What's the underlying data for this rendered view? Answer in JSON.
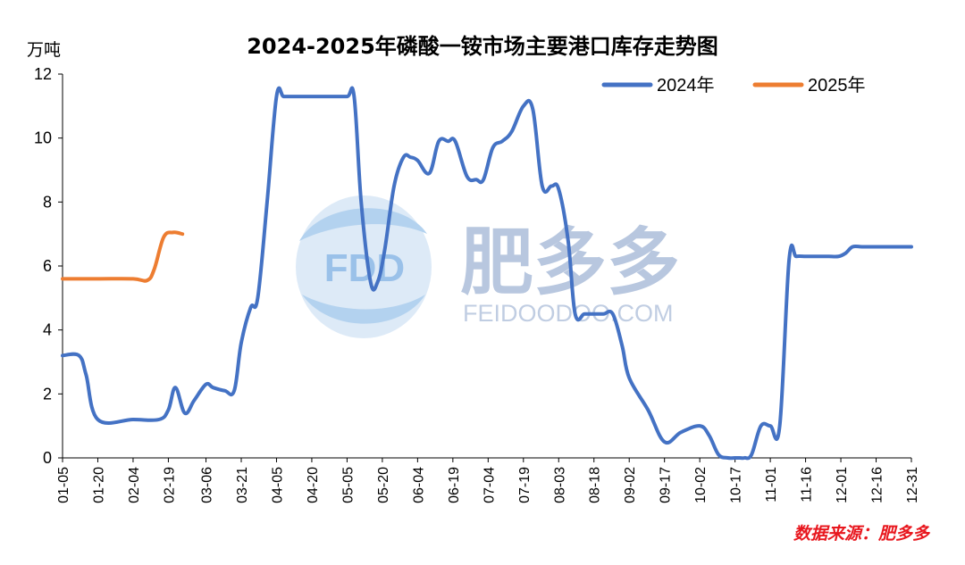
{
  "chart_data": {
    "type": "line",
    "title": "2024-2025年磷酸一铵市场主要港口库存走势图",
    "yunit": "万吨",
    "ylim": [
      0,
      12
    ],
    "yticks": [
      0,
      2,
      4,
      6,
      8,
      10,
      12
    ],
    "categories": [
      "01-05",
      "01-20",
      "02-04",
      "02-19",
      "03-06",
      "03-21",
      "04-05",
      "04-20",
      "05-05",
      "05-20",
      "06-04",
      "06-19",
      "07-04",
      "07-19",
      "08-03",
      "08-18",
      "09-02",
      "09-17",
      "10-02",
      "10-17",
      "11-01",
      "11-16",
      "12-01",
      "12-16",
      "12-31"
    ],
    "grid": false,
    "legend": "top-right",
    "series": [
      {
        "name": "2024年",
        "color": "#4472c4",
        "x": [
          "01-05",
          "01-12",
          "01-15",
          "01-20",
          "02-04",
          "02-15",
          "02-19",
          "02-22",
          "02-26",
          "03-01",
          "03-06",
          "03-09",
          "03-14",
          "03-18",
          "03-21",
          "03-25",
          "03-28",
          "04-01",
          "04-05",
          "04-08",
          "04-12",
          "04-15",
          "04-20",
          "04-28",
          "05-05",
          "05-08",
          "05-11",
          "05-15",
          "05-18",
          "05-21",
          "05-25",
          "05-29",
          "06-01",
          "06-04",
          "06-09",
          "06-13",
          "06-17",
          "06-20",
          "06-25",
          "06-29",
          "07-02",
          "07-06",
          "07-10",
          "07-14",
          "07-19",
          "07-23",
          "07-27",
          "07-31",
          "08-03",
          "08-07",
          "08-10",
          "08-14",
          "08-18",
          "08-22",
          "08-26",
          "08-30",
          "09-02",
          "09-10",
          "09-17",
          "09-24",
          "10-02",
          "10-06",
          "10-10",
          "10-14",
          "10-17",
          "10-19",
          "10-21",
          "10-24",
          "10-28",
          "11-01",
          "11-05",
          "11-09",
          "11-12",
          "11-16",
          "11-20",
          "11-23",
          "11-26",
          "11-30",
          "12-03",
          "12-06",
          "12-10",
          "12-16",
          "12-21",
          "12-25",
          "12-31"
        ],
        "values": [
          3.2,
          3.2,
          2.6,
          1.2,
          1.2,
          1.2,
          1.5,
          2.2,
          1.4,
          1.8,
          2.3,
          2.2,
          2.1,
          2.1,
          3.6,
          4.7,
          5.0,
          8.0,
          11.3,
          11.3,
          11.3,
          11.3,
          11.3,
          11.3,
          11.3,
          11.3,
          8.0,
          5.5,
          5.5,
          6.5,
          8.5,
          9.4,
          9.4,
          9.3,
          8.9,
          9.9,
          9.9,
          9.9,
          8.8,
          8.7,
          8.7,
          9.7,
          9.9,
          10.2,
          11.0,
          10.9,
          8.5,
          8.5,
          8.4,
          6.8,
          4.5,
          4.5,
          4.5,
          4.5,
          4.5,
          3.5,
          2.5,
          1.5,
          0.5,
          0.8,
          1.0,
          0.7,
          0.1,
          0.0,
          0.0,
          0.0,
          0.0,
          0.1,
          1.0,
          1.0,
          1.0,
          6.2,
          6.3,
          6.3,
          6.3,
          6.3,
          6.3,
          6.3,
          6.4,
          6.6,
          6.6,
          6.6,
          6.6,
          6.6,
          6.6
        ]
      },
      {
        "name": "2025年",
        "color": "#ed7d31",
        "x": [
          "01-05",
          "01-20",
          "02-04",
          "02-10",
          "02-13",
          "02-17",
          "02-21",
          "02-25"
        ],
        "values": [
          5.6,
          5.6,
          5.6,
          5.55,
          5.9,
          6.9,
          7.05,
          7.0
        ]
      }
    ]
  },
  "source_text": "数据来源：肥多多",
  "watermark": {
    "badge": "FDD",
    "brand": "肥多多",
    "url": "FEIDOODOO.COM"
  }
}
